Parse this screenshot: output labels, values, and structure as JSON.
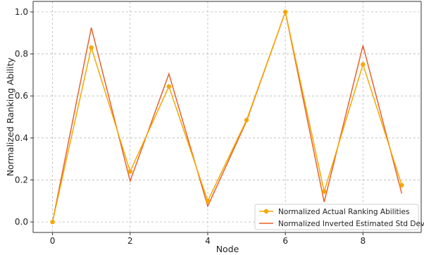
{
  "chart_data": {
    "type": "line",
    "title": "",
    "xlabel": "Node",
    "ylabel": "Normalized Ranking Ability",
    "x": [
      0,
      1,
      2,
      3,
      4,
      5,
      6,
      7,
      8,
      9
    ],
    "xlim": [
      -0.5,
      9.5
    ],
    "ylim": [
      -0.05,
      1.05
    ],
    "x_ticks": [
      0,
      2,
      4,
      6,
      8
    ],
    "x_tick_labels": [
      "0",
      "2",
      "4",
      "6",
      "8"
    ],
    "y_ticks": [
      0.0,
      0.2,
      0.4,
      0.6,
      0.8,
      1.0
    ],
    "y_tick_labels": [
      "0.0",
      "0.2",
      "0.4",
      "0.6",
      "0.8",
      "1.0"
    ],
    "grid": true,
    "legend_position": "bottom-right",
    "series": [
      {
        "name": "Normalized Actual Ranking Abilities",
        "color": "#f5a800",
        "marker": "circle",
        "values": [
          0.0,
          0.83,
          0.24,
          0.645,
          0.1,
          0.485,
          1.0,
          0.145,
          0.75,
          0.175
        ]
      },
      {
        "name": "Normalized Inverted Estimated Std Dev",
        "color": "#e8612c",
        "marker": "none",
        "values": [
          0.0,
          0.925,
          0.195,
          0.705,
          0.075,
          0.48,
          1.0,
          0.095,
          0.84,
          0.135
        ]
      }
    ]
  }
}
